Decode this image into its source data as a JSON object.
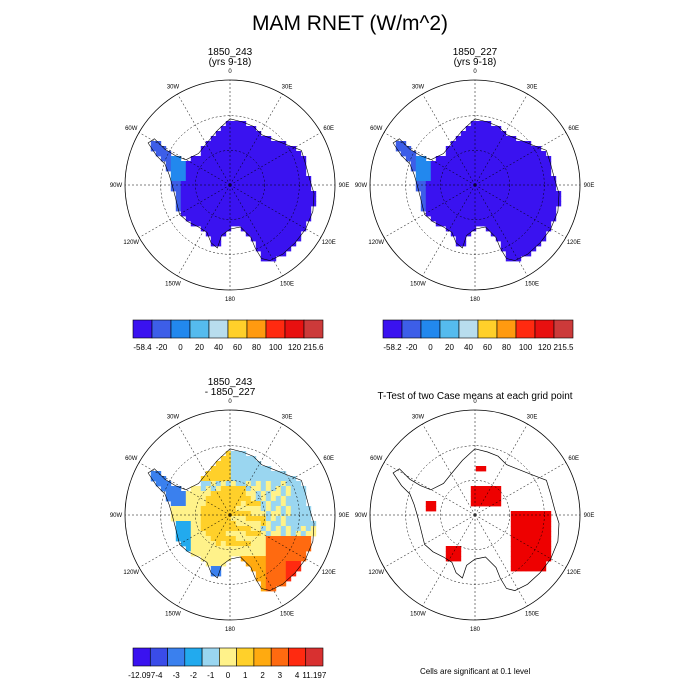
{
  "title": "MAM RNET (W/m^2)",
  "lon_labels": [
    "0",
    "30E",
    "60E",
    "90E",
    "120E",
    "150E",
    "180",
    "150W",
    "120W",
    "90W",
    "60W",
    "30W"
  ],
  "panels": [
    {
      "id": "p1",
      "title_line1": "1850_243",
      "title_line2": "(yrs 9-18)",
      "colorbar": {
        "colors": [
          "#3a12f0",
          "#3d5ee8",
          "#2288ee",
          "#55bbee",
          "#b8ddee",
          "#ffd02a",
          "#ff9a10",
          "#ff2a10",
          "#e81010",
          "#cc3a3a"
        ],
        "labels": [
          "-58.4",
          "-20",
          "0",
          "20",
          "40",
          "60",
          "80",
          "100",
          "120",
          "215.6"
        ]
      }
    },
    {
      "id": "p2",
      "title_line1": "1850_227",
      "title_line2": "(yrs 9-18)",
      "colorbar": {
        "colors": [
          "#3a12f0",
          "#3d5ee8",
          "#2288ee",
          "#55bbee",
          "#b8ddee",
          "#ffd02a",
          "#ff9a10",
          "#ff2a10",
          "#e81010",
          "#cc3a3a"
        ],
        "labels": [
          "-58.2",
          "-20",
          "0",
          "20",
          "40",
          "60",
          "80",
          "100",
          "120",
          "215.5"
        ]
      }
    },
    {
      "id": "p3",
      "title_line1": "1850_243",
      "title_line2": "- 1850_227",
      "colorbar": {
        "colors": [
          "#3a12f0",
          "#3a4ce8",
          "#3a80ee",
          "#22aaee",
          "#9ad6f0",
          "#fff28a",
          "#ffd02a",
          "#ffaa10",
          "#ff6a10",
          "#ff2a10",
          "#d83030"
        ],
        "labels": [
          "-12.097",
          "-4",
          "-3",
          "-2",
          "-1",
          "0",
          "1",
          "2",
          "3",
          "4",
          "11.197"
        ]
      }
    },
    {
      "id": "p4",
      "title_line1": "T-Test of two Case means at each grid point",
      "note": "Cells are significant at 0.1 level"
    }
  ]
}
